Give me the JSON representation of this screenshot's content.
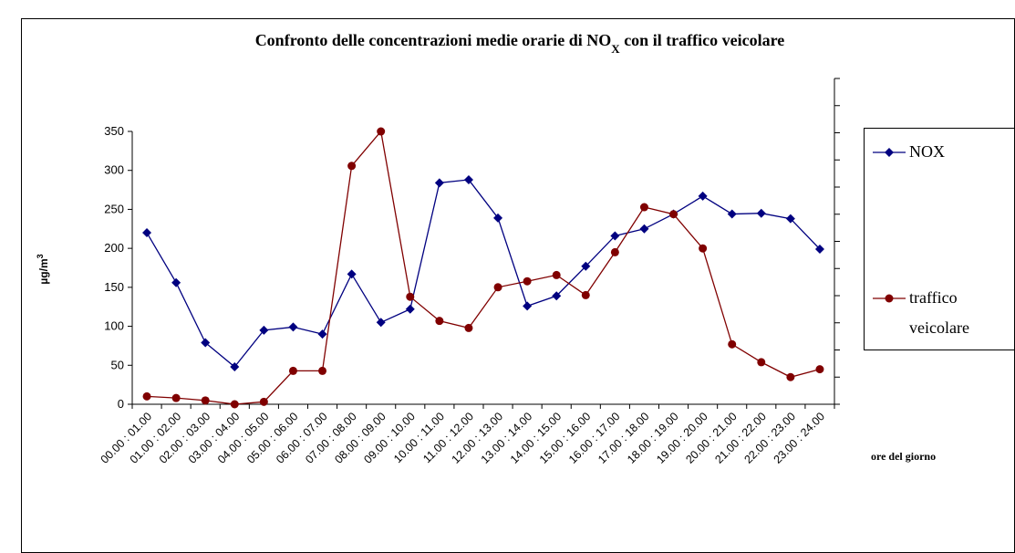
{
  "chart_data": {
    "type": "line",
    "title": [
      "Confronto delle concentrazioni medie orarie di NO",
      "X",
      " con il traffico veicolare"
    ],
    "y_label": [
      "µg/m",
      "3"
    ],
    "x_label": "ore del giorno",
    "categories": [
      "00.00 : 01.00",
      "01.00 : 02.00",
      "02.00 : 03.00",
      "03.00 : 04.00",
      "04.00 : 05.00",
      "05.00 : 06.00",
      "06.00 : 07.00",
      "07.00 : 08.00",
      "08.00 : 09.00",
      "09.00 : 10.00",
      "10.00 : 11.00",
      "11.00 : 12.00",
      "12.00 : 13.00",
      "13.00 : 14.00",
      "14.00 : 15.00",
      "15.00 : 16.00",
      "16.00 : 17.00",
      "17.00 : 18.00",
      "18.00 : 19.00",
      "19.00 : 20.00",
      "20.00 : 21.00",
      "21.00 : 22.00",
      "22.00 : 23.00",
      "23.00 : 24.00"
    ],
    "series": [
      {
        "name": "NOX",
        "color": "#000080",
        "marker": "diamond",
        "values": [
          220,
          156,
          79,
          48,
          95,
          99,
          90,
          167,
          105,
          122,
          284,
          288,
          239,
          126,
          139,
          177,
          216,
          225,
          244,
          267,
          244,
          245,
          238,
          199
        ]
      },
      {
        "name": "traffico veicolare",
        "color": "#800000",
        "marker": "circle",
        "axis": "y2",
        "values": [
          29,
          23,
          14,
          0,
          9,
          123,
          123,
          878,
          1005,
          396,
          307,
          281,
          431,
          453,
          476,
          402,
          560,
          726,
          700,
          574,
          221,
          155,
          100,
          129
        ]
      }
    ],
    "ylim": [
      0,
      350
    ],
    "yticks": [
      0,
      50,
      100,
      150,
      200,
      250,
      300,
      350
    ],
    "y2lim": [
      0,
      1200
    ],
    "y2ticks": [
      0,
      100,
      200,
      300,
      400,
      500,
      600,
      700,
      800,
      900,
      1000,
      1100,
      1200
    ]
  }
}
